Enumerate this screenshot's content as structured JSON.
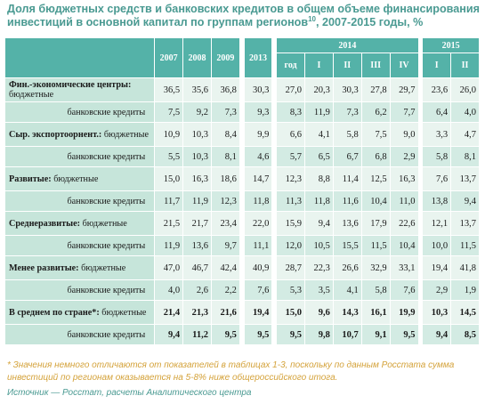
{
  "title": "Доля бюджетных средств и банковских кредитов в общем объеме финансирования инвестиций в основной капитал по группам регионов",
  "title_sup": "10",
  "title_tail": ", 2007-2015 годы, %",
  "header": {
    "years": [
      "2007",
      "2008",
      "2009",
      "2013"
    ],
    "year_2014": "2014",
    "year_2015": "2015",
    "sub_2014": [
      "год",
      "I",
      "II",
      "III",
      "IV"
    ],
    "sub_2015": [
      "I",
      "II"
    ]
  },
  "rows": [
    {
      "label_bold": "Фин.-экономические центры:",
      "label": " бюджетные",
      "values": [
        "36,5",
        "35,6",
        "36,8",
        "30,3",
        "27,0",
        "20,3",
        "30,3",
        "27,8",
        "29,7",
        "23,6",
        "26,0"
      ]
    },
    {
      "label": "банковские кредиты",
      "values": [
        "7,5",
        "9,2",
        "7,3",
        "9,3",
        "8,3",
        "11,9",
        "7,3",
        "6,2",
        "7,7",
        "6,4",
        "4,0"
      ]
    },
    {
      "label_bold": "Сыр. экспортоорнент.:",
      "label": " бюджетные",
      "values": [
        "10,9",
        "10,3",
        "8,4",
        "9,9",
        "6,6",
        "4,1",
        "5,8",
        "7,5",
        "9,0",
        "3,3",
        "4,7"
      ]
    },
    {
      "label": "банковские кредиты",
      "values": [
        "5,5",
        "10,3",
        "8,1",
        "4,6",
        "5,7",
        "6,5",
        "6,7",
        "6,8",
        "2,9",
        "5,8",
        "8,1"
      ]
    },
    {
      "label_bold": "Развитые:",
      "label": " бюджетные",
      "values": [
        "15,0",
        "16,3",
        "18,6",
        "14,7",
        "12,3",
        "8,8",
        "11,4",
        "12,5",
        "16,3",
        "7,6",
        "13,7"
      ]
    },
    {
      "label": "банковские кредиты",
      "values": [
        "11,7",
        "11,9",
        "12,3",
        "11,8",
        "11,3",
        "11,8",
        "11,6",
        "10,4",
        "11,0",
        "13,8",
        "9,4"
      ]
    },
    {
      "label_bold": "Среднеразвитые:",
      "label": " бюджетные",
      "values": [
        "21,5",
        "21,7",
        "23,4",
        "22,0",
        "15,9",
        "9,4",
        "13,6",
        "17,9",
        "22,6",
        "12,1",
        "13,7"
      ]
    },
    {
      "label": "банковские кредиты",
      "values": [
        "11,9",
        "13,6",
        "9,7",
        "11,1",
        "12,0",
        "10,5",
        "15,5",
        "11,5",
        "10,4",
        "10,0",
        "11,5"
      ]
    },
    {
      "label_bold": "Менее развитые:",
      "label": " бюджетные",
      "values": [
        "47,0",
        "46,7",
        "42,4",
        "40,9",
        "28,7",
        "22,3",
        "26,6",
        "32,9",
        "33,1",
        "19,4",
        "41,8"
      ]
    },
    {
      "label": "банковские кредиты",
      "values": [
        "4,0",
        "2,6",
        "2,2",
        "7,6",
        "5,3",
        "3,5",
        "4,1",
        "5,8",
        "7,6",
        "2,9",
        "1,9"
      ]
    },
    {
      "label_bold": "В среднем по стране*:",
      "label": " бюджетные",
      "values": [
        "21,4",
        "21,3",
        "21,6",
        "19,4",
        "15,0",
        "9,6",
        "14,3",
        "16,1",
        "19,9",
        "10,3",
        "14,5"
      ]
    },
    {
      "label": "банковские кредиты",
      "values": [
        "9,4",
        "11,2",
        "9,5",
        "9,5",
        "9,5",
        "9,8",
        "10,7",
        "9,1",
        "9,5",
        "9,4",
        "8,5"
      ]
    }
  ],
  "note": "* Значения немного отличаются от показателей в таблицах 1-3, поскольку по данным Росстата сумма инвестиций по регионам оказывается на 5-8% ниже общероссийского итога.",
  "source": "Источник — Росстат, расчеты Аналитического центра",
  "colors": {
    "header_bg": "#54b2a8",
    "title": "#4a9a92",
    "row_light": "#e9f4ef",
    "row_dark": "#d3ebe3",
    "note": "#d4a23a"
  }
}
